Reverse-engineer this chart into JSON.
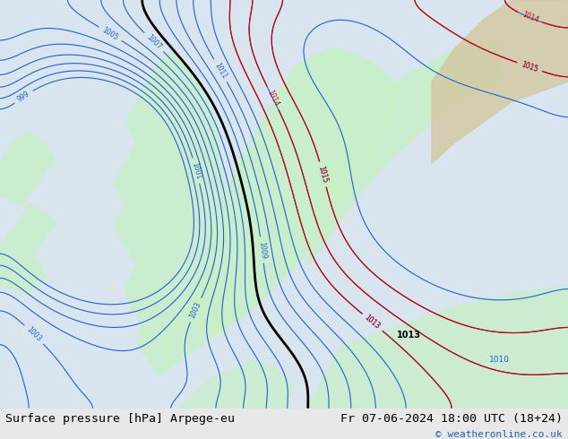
{
  "title_left": "Surface pressure [hPa] Arpege-eu",
  "title_right": "Fr 07-06-2024 18:00 UTC (18+24)",
  "copyright": "© weatheronline.co.uk",
  "bg_color": "#e8e8e8",
  "map_bg_light": "#f0f0f0",
  "land_green": "#c8f0c8",
  "land_tan": "#d4c8a0",
  "ocean_blue": "#d0e8f8",
  "isobar_blue": "#2060d0",
  "isobar_red": "#cc0000",
  "isobar_black": "#000000",
  "figsize": [
    6.34,
    4.9
  ],
  "dpi": 100,
  "footer_bg": "#f0f0f0",
  "footer_text_color": "#000000",
  "copyright_color": "#2060c0",
  "title_fontsize": 9.5,
  "copyright_fontsize": 8
}
